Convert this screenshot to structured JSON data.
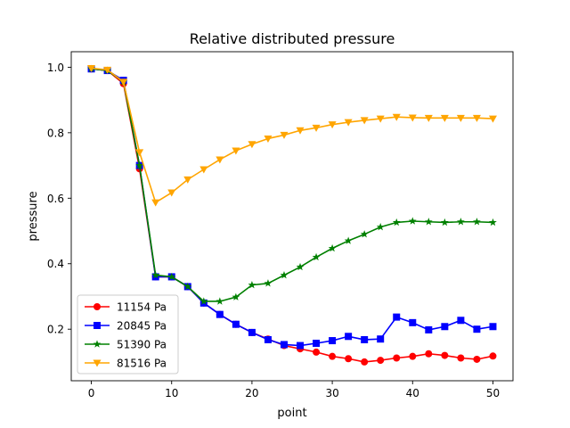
{
  "chart_data": {
    "type": "line",
    "title": "Relative distributed pressure",
    "xlabel": "point",
    "ylabel": "pressure",
    "xlim": [
      -2.5,
      52.5
    ],
    "ylim": [
      0.0426,
      1.0474
    ],
    "xticks": [
      0,
      10,
      20,
      30,
      40,
      50
    ],
    "xtick_labels": [
      "0",
      "10",
      "20",
      "30",
      "40",
      "50"
    ],
    "yticks": [
      0.2,
      0.4,
      0.6,
      0.8,
      1.0
    ],
    "ytick_labels": [
      "0.2",
      "0.4",
      "0.6",
      "0.8",
      "1.0"
    ],
    "grid": false,
    "legend_position": "lower-left",
    "x": [
      0,
      2,
      4,
      6,
      8,
      10,
      12,
      14,
      16,
      18,
      20,
      22,
      24,
      26,
      28,
      30,
      32,
      34,
      36,
      38,
      40,
      42,
      44,
      46,
      48,
      50
    ],
    "series": [
      {
        "name": "11154 Pa",
        "color": "#ff0000",
        "marker": "circle",
        "values": [
          0.995,
          0.99,
          0.95,
          0.69,
          0.36,
          0.36,
          0.33,
          0.28,
          0.245,
          0.215,
          0.19,
          0.17,
          0.15,
          0.14,
          0.13,
          0.117,
          0.11,
          0.1,
          0.105,
          0.112,
          0.117,
          0.125,
          0.12,
          0.112,
          0.108,
          0.118
        ]
      },
      {
        "name": "20845 Pa",
        "color": "#0000ff",
        "marker": "square",
        "values": [
          0.995,
          0.99,
          0.96,
          0.7,
          0.36,
          0.36,
          0.33,
          0.28,
          0.245,
          0.215,
          0.19,
          0.168,
          0.153,
          0.15,
          0.157,
          0.165,
          0.178,
          0.168,
          0.17,
          0.237,
          0.22,
          0.198,
          0.208,
          0.227,
          0.2,
          0.208
        ]
      },
      {
        "name": "51390 Pa",
        "color": "#008000",
        "marker": "star",
        "values": [
          0.995,
          0.99,
          0.955,
          0.7,
          0.365,
          0.36,
          0.33,
          0.285,
          0.285,
          0.298,
          0.335,
          0.34,
          0.365,
          0.39,
          0.42,
          0.447,
          0.47,
          0.49,
          0.512,
          0.526,
          0.53,
          0.528,
          0.526,
          0.528,
          0.528,
          0.526
        ]
      },
      {
        "name": "81516 Pa",
        "color": "#ffa500",
        "marker": "triangle-down",
        "values": [
          0.997,
          0.992,
          0.955,
          0.74,
          0.587,
          0.617,
          0.657,
          0.688,
          0.718,
          0.745,
          0.765,
          0.782,
          0.793,
          0.807,
          0.815,
          0.825,
          0.832,
          0.838,
          0.843,
          0.848,
          0.846,
          0.845,
          0.845,
          0.845,
          0.845,
          0.843
        ]
      }
    ]
  }
}
